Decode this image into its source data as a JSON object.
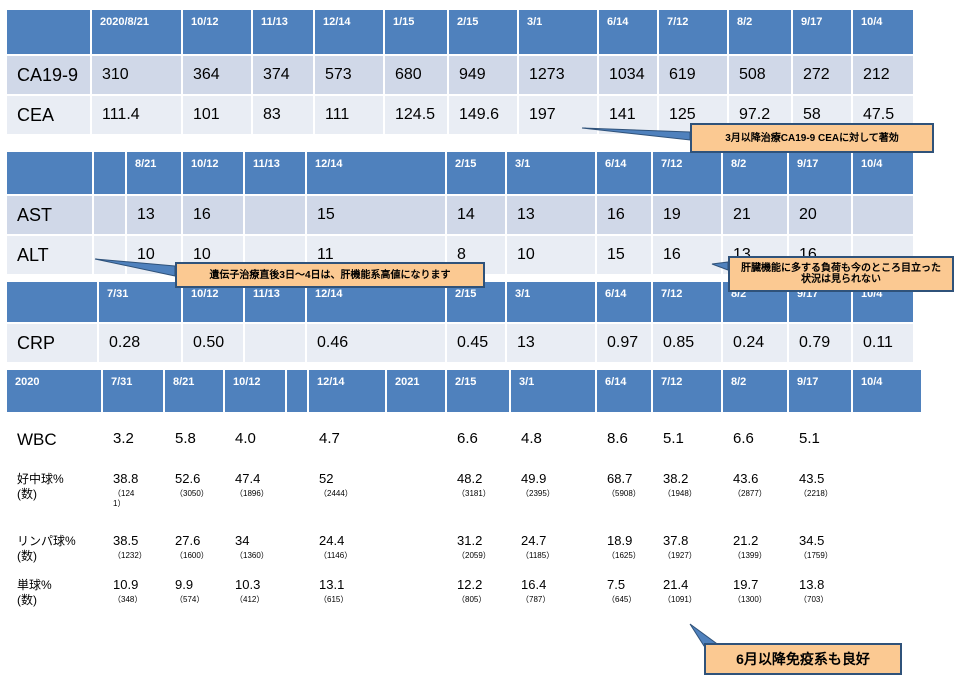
{
  "tables": [
    {
      "id": "t1",
      "header": [
        "",
        "2020/8/21",
        "10/12",
        "11/13",
        "12/14",
        "1/15",
        "2/15",
        "3/1",
        "6/14",
        "7/12",
        "8/2",
        "9/17",
        "10/4"
      ],
      "rows": [
        {
          "label": "CA19-9",
          "values": [
            "310",
            "364",
            "374",
            "573",
            "680",
            "949",
            "1273",
            "1034",
            "619",
            "508",
            "272",
            "212"
          ]
        },
        {
          "label": "CEA",
          "values": [
            "111.4",
            "101",
            "83",
            "111",
            "124.5",
            "149.6",
            "197",
            "141",
            "125",
            "97.2",
            "58",
            "47.5"
          ]
        }
      ]
    },
    {
      "id": "t2",
      "header": [
        "",
        "",
        "8/21",
        "10/12",
        "11/13",
        "12/14",
        "2/15",
        "3/1",
        "6/14",
        "7/12",
        "8/2",
        "9/17",
        "10/4"
      ],
      "rows": [
        {
          "label": "AST",
          "values": [
            "",
            "13",
            "16",
            "",
            "15",
            "14",
            "13",
            "16",
            "19",
            "21",
            "20",
            ""
          ]
        },
        {
          "label": "ALT",
          "values": [
            "",
            "10",
            "10",
            "",
            "11",
            "8",
            "10",
            "15",
            "16",
            "13",
            "16",
            ""
          ]
        }
      ]
    },
    {
      "id": "t3",
      "header": [
        "",
        "7/31",
        "10/12",
        "11/13",
        "12/14",
        "2/15",
        "3/1",
        "6/14",
        "7/12",
        "8/2",
        "9/17",
        "10/4"
      ],
      "rows": [
        {
          "label": "CRP",
          "values": [
            "0.28",
            "0.50",
            "",
            "0.46",
            "0.45",
            "13",
            "0.97",
            "0.85",
            "0.24",
            "0.79",
            "0.11"
          ]
        }
      ]
    },
    {
      "id": "t4",
      "header": [
        "2020",
        "7/31",
        "8/21",
        "10/12",
        "",
        "12/14",
        "2021",
        "2/15",
        "3/1",
        "6/14",
        "7/12",
        "8/2",
        "9/17",
        "10/4"
      ],
      "rows": [
        {
          "label": "WBC",
          "values": [
            {
              "v": "3.2",
              "s": ""
            },
            {
              "v": "5.8",
              "s": ""
            },
            {
              "v": "4.0",
              "s": ""
            },
            {
              "v": "",
              "s": ""
            },
            {
              "v": "4.7",
              "s": ""
            },
            {
              "v": "",
              "s": ""
            },
            {
              "v": "6.6",
              "s": ""
            },
            {
              "v": "4.8",
              "s": ""
            },
            {
              "v": "8.6",
              "s": ""
            },
            {
              "v": "5.1",
              "s": ""
            },
            {
              "v": "6.6",
              "s": ""
            },
            {
              "v": "5.1",
              "s": ""
            },
            {
              "v": "",
              "s": ""
            }
          ]
        },
        {
          "label": "好中球%\n(数)",
          "values": [
            {
              "v": "38.8",
              "s": "（124\n1）"
            },
            {
              "v": "52.6",
              "s": "（3050）"
            },
            {
              "v": "47.4",
              "s": "（1896）"
            },
            {
              "v": "",
              "s": ""
            },
            {
              "v": "52",
              "s": "（2444）"
            },
            {
              "v": "",
              "s": ""
            },
            {
              "v": "48.2",
              "s": "（3181）"
            },
            {
              "v": "49.9",
              "s": "（2395）"
            },
            {
              "v": "68.7",
              "s": "（5908）"
            },
            {
              "v": "38.2",
              "s": "（1948）"
            },
            {
              "v": "43.6",
              "s": "（2877）"
            },
            {
              "v": "43.5",
              "s": "（2218）"
            },
            {
              "v": "",
              "s": ""
            }
          ]
        },
        {
          "label": "リンパ球%\n(数)",
          "values": [
            {
              "v": "38.5",
              "s": "（1232）"
            },
            {
              "v": "27.6",
              "s": "（1600）"
            },
            {
              "v": "34",
              "s": "（1360）"
            },
            {
              "v": "",
              "s": ""
            },
            {
              "v": "24.4",
              "s": "（1146）"
            },
            {
              "v": "",
              "s": ""
            },
            {
              "v": "31.2",
              "s": "（2059）"
            },
            {
              "v": "24.7",
              "s": "（1185）"
            },
            {
              "v": "18.9",
              "s": "（1625）"
            },
            {
              "v": "37.8",
              "s": "（1927）"
            },
            {
              "v": "21.2",
              "s": "（1399）"
            },
            {
              "v": "34.5",
              "s": "（1759）"
            },
            {
              "v": "",
              "s": ""
            }
          ]
        },
        {
          "label": "単球%\n(数)",
          "values": [
            {
              "v": "10.9",
              "s": "（348）"
            },
            {
              "v": "9.9",
              "s": "（574）"
            },
            {
              "v": "10.3",
              "s": "（412）"
            },
            {
              "v": "",
              "s": ""
            },
            {
              "v": "13.1",
              "s": "（615）"
            },
            {
              "v": "",
              "s": ""
            },
            {
              "v": "12.2",
              "s": "（805）"
            },
            {
              "v": "16.4",
              "s": "（787）"
            },
            {
              "v": "7.5",
              "s": "（645）"
            },
            {
              "v": "21.4",
              "s": "（1091）"
            },
            {
              "v": "19.7",
              "s": "（1300）"
            },
            {
              "v": "13.8",
              "s": "（703）"
            },
            {
              "v": "",
              "s": ""
            }
          ]
        }
      ]
    }
  ],
  "callouts": {
    "marker_effect": "3月以降治療CA19-9 CEAに対して著効",
    "liver_after_gene": "遺伝子治療直後3日～4日は、肝機能系高値になります",
    "liver_no_burden": "肝臓機能に多する負荷も今のところ目立った状況は見られない",
    "immune_good": "6月以降免疫系も良好"
  },
  "colors": {
    "header": "#4f81bd",
    "band1": "#d0d8e8",
    "band2": "#e9edf4",
    "callout_fill": "#fbc992",
    "callout_border": "#2f527a"
  }
}
